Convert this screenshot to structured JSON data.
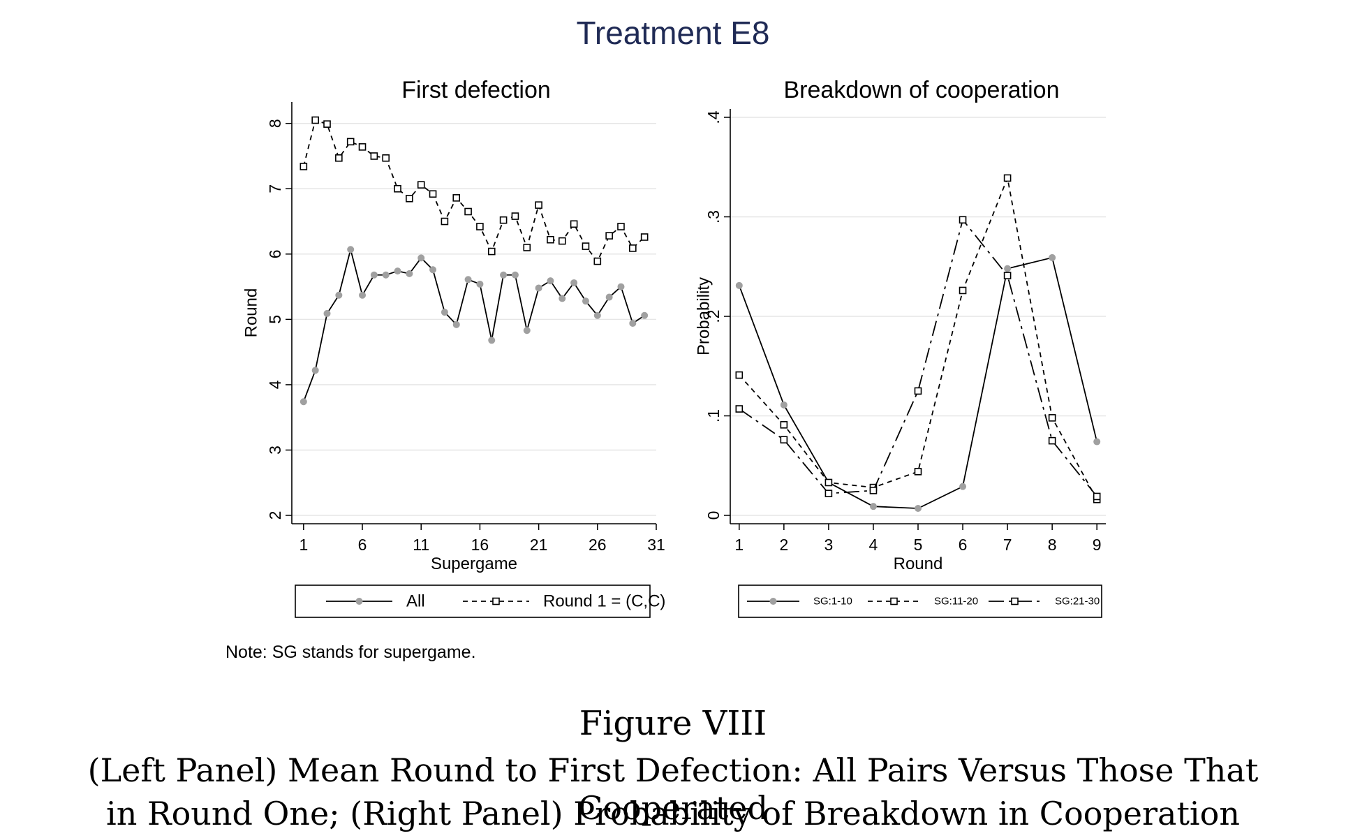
{
  "main_title": "Treatment E8",
  "note": "Note: SG stands for supergame.",
  "caption": {
    "figure": "Figure VIII",
    "line1": "(Left Panel) Mean Round to First Defection: All Pairs Versus Those That Cooperated",
    "line2": "in Round One; (Right Panel) Probability of Breakdown in Cooperation"
  },
  "colors": {
    "title": "#1f2a55",
    "line": "#000000",
    "marker_fill": "#a0a0a0",
    "grid": "#e6e6e6"
  },
  "chart_data": [
    {
      "type": "line",
      "title": "First defection",
      "xlabel": "Supergame",
      "ylabel": "Round",
      "xlim": [
        0,
        31
      ],
      "ylim": [
        2,
        8.2
      ],
      "xticks": [
        1,
        6,
        11,
        16,
        21,
        26,
        31
      ],
      "yticks": [
        2,
        3,
        4,
        5,
        6,
        7,
        8
      ],
      "grid": true,
      "legend": "bottom",
      "x": [
        1,
        2,
        3,
        4,
        5,
        6,
        7,
        8,
        9,
        10,
        11,
        12,
        13,
        14,
        15,
        16,
        17,
        18,
        19,
        20,
        21,
        22,
        23,
        24,
        25,
        26,
        27,
        28,
        29,
        30
      ],
      "series": [
        {
          "name": "All",
          "style": "solid",
          "marker": "circle",
          "values": [
            3.74,
            4.22,
            5.09,
            5.37,
            6.07,
            5.37,
            5.68,
            5.68,
            5.74,
            5.7,
            5.94,
            5.76,
            5.11,
            4.92,
            5.61,
            5.54,
            4.68,
            5.68,
            5.68,
            4.83,
            5.48,
            5.59,
            5.32,
            5.56,
            5.28,
            5.06,
            5.34,
            5.5,
            4.94,
            5.06
          ]
        },
        {
          "name": "Round 1 = (C,C)",
          "style": "dashed",
          "marker": "square",
          "values": [
            7.34,
            8.05,
            7.99,
            7.47,
            7.72,
            7.64,
            7.5,
            7.47,
            7.0,
            6.85,
            7.06,
            6.92,
            6.5,
            6.86,
            6.65,
            6.42,
            6.04,
            6.52,
            6.58,
            6.1,
            6.75,
            6.22,
            6.2,
            6.46,
            6.12,
            5.89,
            6.28,
            6.42,
            6.09,
            6.26
          ]
        }
      ]
    },
    {
      "type": "line",
      "title": "Breakdown of cooperation",
      "xlabel": "Round",
      "ylabel": "Probability",
      "xlim": [
        0.8,
        9.2
      ],
      "ylim": [
        0,
        0.4
      ],
      "xticks": [
        1,
        2,
        3,
        4,
        5,
        6,
        7,
        8,
        9
      ],
      "yticks": [
        0,
        0.1,
        0.2,
        0.3,
        0.4
      ],
      "ytick_labels": [
        "0",
        ".1",
        ".2",
        ".3",
        ".4"
      ],
      "grid": true,
      "legend": "bottom",
      "x": [
        1,
        2,
        3,
        4,
        5,
        6,
        7,
        8,
        9
      ],
      "series": [
        {
          "name": "SG:1-10",
          "style": "solid",
          "marker": "circle",
          "values": [
            0.231,
            0.111,
            0.033,
            0.009,
            0.007,
            0.029,
            0.248,
            0.259,
            0.074
          ]
        },
        {
          "name": "SG:11-20",
          "style": "dashed",
          "marker": "square",
          "values": [
            0.141,
            0.091,
            0.033,
            0.028,
            0.044,
            0.226,
            0.339,
            0.098,
            0.016
          ]
        },
        {
          "name": "SG:21-30",
          "style": "dashdot",
          "marker": "square",
          "values": [
            0.107,
            0.076,
            0.022,
            0.025,
            0.125,
            0.297,
            0.241,
            0.075,
            0.019
          ]
        }
      ]
    }
  ]
}
